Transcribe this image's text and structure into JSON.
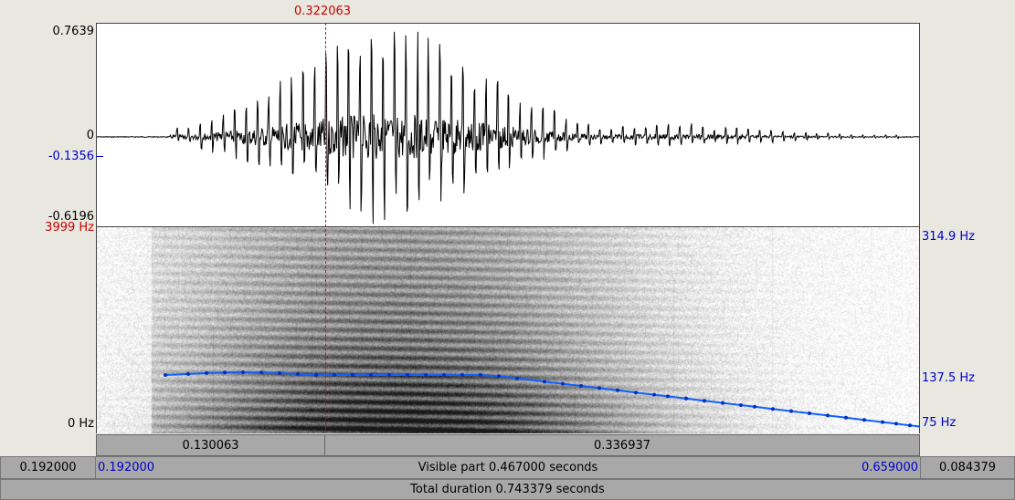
{
  "cursor": {
    "time": "0.322063"
  },
  "waveform": {
    "max_label": "0.7639",
    "zero_label": "0",
    "cursor_value_label": "-0.1356",
    "min_label": "-0.6196"
  },
  "spectrogram": {
    "top_freq_label": "3999 Hz",
    "bottom_freq_label": "0 Hz"
  },
  "pitch": {
    "top_label": "314.9 Hz",
    "mid_label": "137.5 Hz",
    "bottom_label": "75 Hz"
  },
  "selection": {
    "left_duration": "0.130063",
    "right_duration": "0.336937"
  },
  "visible_bar": {
    "left_outside": "0.192000",
    "start": "0.192000",
    "label": "Visible part 0.467000 seconds",
    "end": "0.659000",
    "right_outside": "0.084379"
  },
  "total_bar": {
    "label": "Total duration 0.743379 seconds"
  },
  "colors": {
    "pitch_line": "#1060ff",
    "cursor": "#d01010",
    "axis_labels": "#0000cc"
  }
}
